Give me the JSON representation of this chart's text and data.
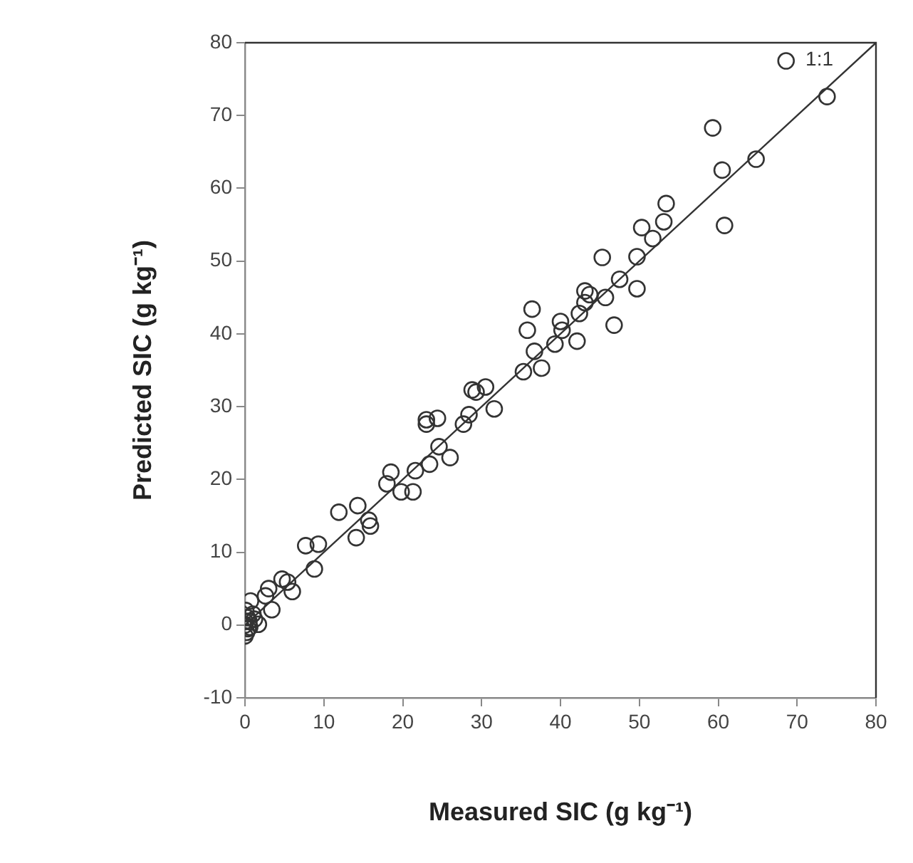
{
  "chart_data": {
    "type": "scatter",
    "xlabel": "Measured SIC (g kg⁻¹)",
    "ylabel": "Predicted SIC (g kg⁻¹)",
    "xlim": [
      0,
      80
    ],
    "xticks": [
      0,
      10,
      20,
      30,
      40,
      50,
      60,
      70,
      80
    ],
    "ylim": [
      -10,
      80
    ],
    "yticks": [
      -10,
      0,
      10,
      20,
      30,
      40,
      50,
      60,
      70,
      80
    ],
    "grid": false,
    "legend": false,
    "annotations": [
      "1:1"
    ],
    "series": [
      {
        "type": "scatter",
        "color": "#333333",
        "marker": "circle",
        "x": [
          68.6,
          73.8,
          59.3,
          60.5,
          64.8,
          60.8,
          53.4,
          53.1,
          50.3,
          51.7,
          49.7,
          45.3,
          47.5,
          49.7,
          45.7,
          43.1,
          43.7,
          43.1,
          42.4,
          46.8,
          40.0,
          40.2,
          39.3,
          42.1,
          36.4,
          35.8,
          36.7,
          37.6,
          35.3,
          31.6,
          30.5,
          28.8,
          29.3,
          28.4,
          27.7,
          24.4,
          23.0,
          23.0,
          24.6,
          26.0,
          23.4,
          21.6,
          18.5,
          18.0,
          19.8,
          21.3,
          11.9,
          14.3,
          15.7,
          15.9,
          14.1,
          7.7,
          9.3,
          8.8,
          4.7,
          5.4,
          6.0,
          3.0,
          2.6,
          3.4,
          0.7,
          1.7,
          0,
          0.2,
          0,
          0.3,
          0.5,
          1.0,
          0.1,
          0.4,
          1.2,
          0,
          0.6
        ],
        "values": [
          77.5,
          72.6,
          68.3,
          62.5,
          64.0,
          54.9,
          57.9,
          55.4,
          54.6,
          53.1,
          50.6,
          50.5,
          47.5,
          46.2,
          45.0,
          45.9,
          45.4,
          44.3,
          42.8,
          41.2,
          41.7,
          40.5,
          38.6,
          39.0,
          43.4,
          40.5,
          37.6,
          35.3,
          34.8,
          29.7,
          32.7,
          32.3,
          32.0,
          28.9,
          27.6,
          28.4,
          28.2,
          27.6,
          24.5,
          23.0,
          22.1,
          21.2,
          21.0,
          19.4,
          18.3,
          18.3,
          15.5,
          16.4,
          14.4,
          13.6,
          12.0,
          10.9,
          11.1,
          7.7,
          6.3,
          5.9,
          4.6,
          5.0,
          4.0,
          2.1,
          3.3,
          0.1,
          0,
          -1.0,
          -1.5,
          1.0,
          0.5,
          1.5,
          2.0,
          -0.5,
          0.8,
          0.5,
          -0.3
        ]
      },
      {
        "type": "line",
        "color": "#333333",
        "line_style": "solid",
        "x": [
          0,
          80
        ],
        "values": [
          0,
          80
        ]
      }
    ]
  }
}
